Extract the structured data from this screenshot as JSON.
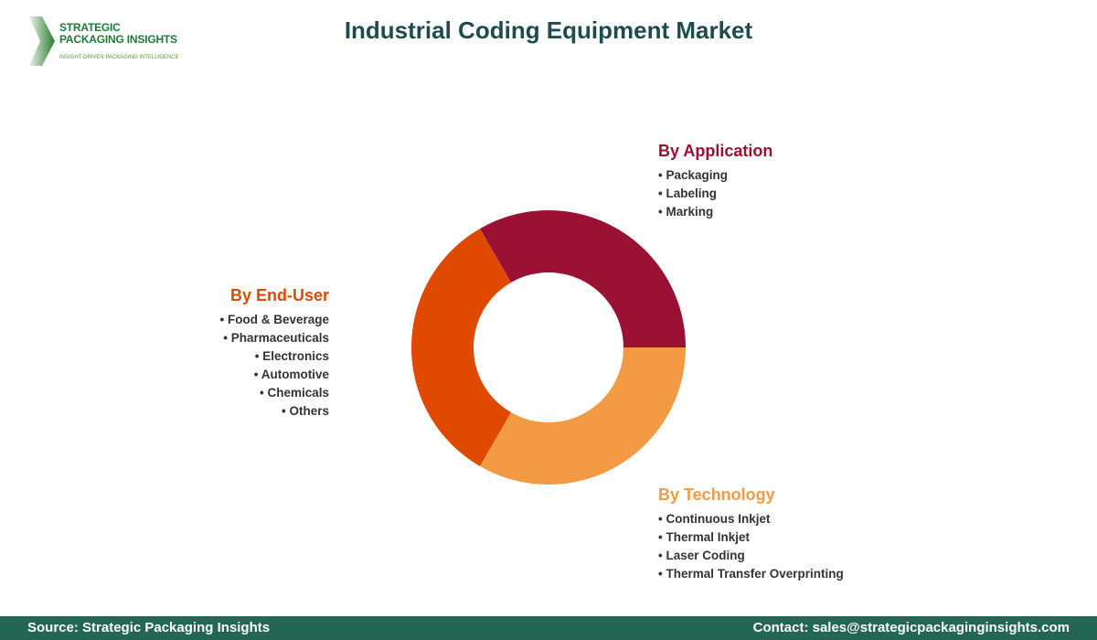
{
  "logo": {
    "line1": "STRATEGIC",
    "line2": "PACKAGING INSIGHTS",
    "tagline": "INSIGHT-DRIVEN PACKAGING INTELLIGENCE"
  },
  "title": "Industrial Coding Equipment Market",
  "segments": [
    {
      "title": "By Application",
      "color": "#9b1133",
      "items": [
        "Packaging",
        "Labeling",
        "Marking"
      ]
    },
    {
      "title": "By Technology",
      "color": "#f39a45",
      "items": [
        "Continuous Inkjet",
        "Thermal Inkjet",
        "Laser Coding",
        "Thermal Transfer Overprinting"
      ]
    },
    {
      "title": "By End-User",
      "color": "#e04a00",
      "items": [
        "Food & Beverage",
        "Pharmaceuticals",
        "Electronics",
        "Automotive",
        "Chemicals",
        "Others"
      ]
    }
  ],
  "footer": {
    "source": "Source: Strategic Packaging Insights",
    "contact": "Contact: sales@strategicpackaginginsights.com"
  }
}
